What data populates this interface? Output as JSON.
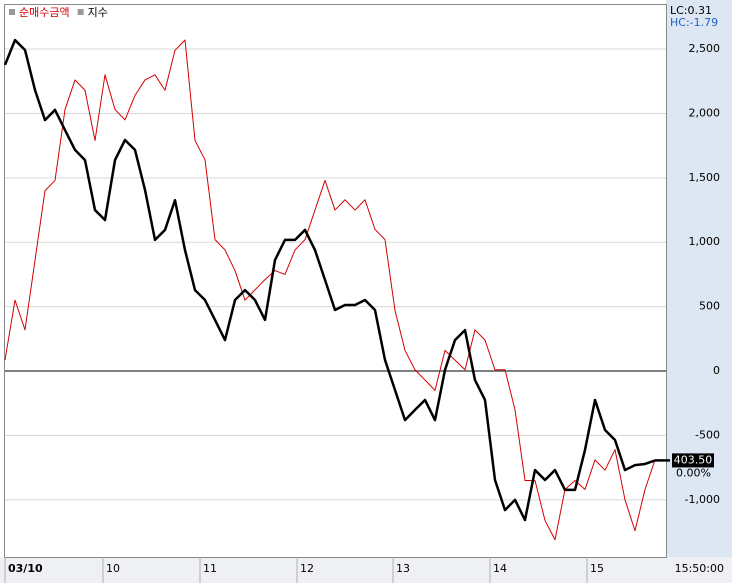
{
  "chart_data": {
    "type": "line",
    "xlim": [
      0,
      65
    ],
    "xticks": [
      {
        "value": 0,
        "label": "03/10"
      },
      {
        "value": 9.8,
        "label": "10"
      },
      {
        "value": 19.5,
        "label": "11"
      },
      {
        "value": 29.2,
        "label": "12"
      },
      {
        "value": 38.8,
        "label": "13"
      },
      {
        "value": 48.5,
        "label": "14"
      },
      {
        "value": 58.2,
        "label": "15"
      }
    ],
    "time_label": "15:50:00",
    "ylim": [
      -1444,
      2842
    ],
    "yticks": [
      {
        "value": -1000,
        "label": "-1,000"
      },
      -500,
      0,
      500,
      {
        "value": 1000,
        "label": "1,000"
      },
      {
        "value": 1500,
        "label": "1,500"
      },
      {
        "value": 2000,
        "label": "2,000"
      },
      {
        "value": 2500,
        "label": "2,500"
      }
    ],
    "y2lim": [
      400,
      420
    ],
    "grid": true,
    "zero_line": 0,
    "lc_label": "LC:0.31",
    "hc_label": "HC:-1.79",
    "change_label": "0.00%",
    "series": [
      {
        "name": "순매수금액",
        "color": "#d40000",
        "values": [
          85,
          550,
          320,
          860,
          1400,
          1480,
          2030,
          2260,
          2180,
          1790,
          2300,
          2030,
          1950,
          2140,
          2260,
          2300,
          2180,
          2490,
          2570,
          1790,
          1640,
          1020,
          940,
          780,
          550,
          630,
          710,
          780,
          750,
          940,
          1020,
          1250,
          1480,
          1250,
          1330,
          1250,
          1330,
          1100,
          1020,
          470,
          160,
          10,
          -70,
          -150,
          160,
          85,
          10,
          320,
          240,
          10,
          10,
          -300,
          -850,
          -850,
          -1160,
          -1310,
          -920,
          -850,
          -920,
          -690,
          -770,
          -610,
          -1000,
          -1240,
          -920,
          -690
        ]
      },
      {
        "name": "지수",
        "color": "#000000",
        "axis": "y2",
        "values": [
          417.83,
          418.73,
          418.37,
          416.92,
          415.83,
          416.2,
          415.47,
          414.75,
          414.38,
          412.57,
          412.21,
          414.38,
          415.11,
          414.75,
          413.3,
          411.49,
          411.85,
          412.93,
          411.12,
          409.67,
          409.31,
          408.59,
          407.86,
          409.31,
          409.67,
          409.31,
          408.59,
          410.76,
          411.49,
          411.49,
          411.85,
          411.12,
          410.04,
          408.95,
          409.13,
          409.13,
          409.31,
          408.95,
          407.14,
          406.05,
          404.96,
          405.33,
          405.69,
          404.96,
          406.78,
          407.86,
          408.22,
          406.41,
          405.69,
          402.79,
          401.7,
          402.07,
          401.34,
          403.15,
          402.79,
          403.15,
          402.43,
          402.43,
          403.88,
          405.69,
          404.6,
          404.24,
          403.15,
          403.33,
          403.37,
          403.5
        ],
        "value_labels": [
          null,
          null,
          null,
          null,
          null,
          null,
          null,
          null,
          null,
          null,
          null,
          null,
          null,
          null,
          null,
          null,
          null,
          null,
          null,
          null,
          null,
          null,
          null,
          null,
          null,
          null,
          null,
          null,
          null,
          null,
          null,
          null,
          null,
          null,
          null,
          null,
          null,
          null,
          null,
          null,
          null,
          null,
          null,
          null,
          null,
          null,
          null,
          null,
          null,
          null,
          null,
          null,
          null,
          null,
          null,
          null,
          null,
          null,
          null,
          null,
          null,
          null,
          null,
          null,
          null,
          "403.50"
        ]
      }
    ]
  }
}
